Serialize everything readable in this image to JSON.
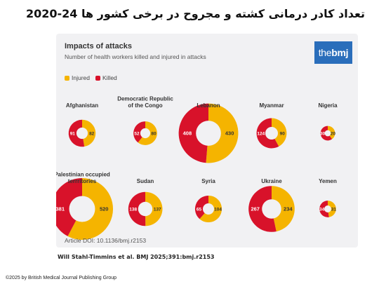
{
  "page_title": "تعداد کادر درمانی کشته و مجروح در برخی کشور ها 24-2020",
  "citation": "Will Stahl-Timmins et al. BMJ 2025;391:bmj.r2153",
  "copyright": "©2025 by British Medical Journal Publishing Group",
  "logo": {
    "part1": "the",
    "part2": "bmj"
  },
  "colors": {
    "injured": "#f5b400",
    "killed": "#d8122a",
    "card_bg": "#f1f1f3"
  },
  "chart_data": {
    "type": "pie",
    "variant": "donut",
    "title": "Impacts of attacks",
    "subtitle": "Number of health workers killed and injured in attacks",
    "legend": [
      {
        "label": "Injured",
        "color": "#f5b400"
      },
      {
        "label": "Killed",
        "color": "#d8122a"
      }
    ],
    "countries": [
      {
        "name": "Afghanistan",
        "injured": 82,
        "killed": 91
      },
      {
        "name": "Democratic Republic of the Congo",
        "injured": 80,
        "killed": 52
      },
      {
        "name": "Lebanon",
        "injured": 430,
        "killed": 408
      },
      {
        "name": "Myanmar",
        "injured": 90,
        "killed": 124
      },
      {
        "name": "Nigeria",
        "injured": 20,
        "killed": 30
      },
      {
        "name": "Palestinian occupied terrritories",
        "injured": 520,
        "killed": 381
      },
      {
        "name": "Sudan",
        "injured": 137,
        "killed": 138
      },
      {
        "name": "Syria",
        "injured": 104,
        "killed": 65
      },
      {
        "name": "Ukraine",
        "injured": 234,
        "killed": 267
      },
      {
        "name": "Yemen",
        "injured": 31,
        "killed": 34
      }
    ],
    "footnote": "Article DOI: 10.1136/bmj.r2153"
  }
}
